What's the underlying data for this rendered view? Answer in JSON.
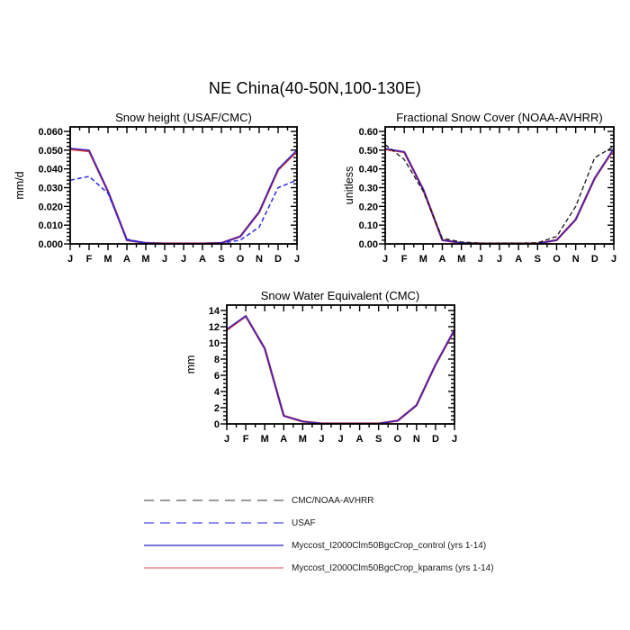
{
  "figure": {
    "title": "NE China(40-50N,100-130E)"
  },
  "chart_data": [
    {
      "type": "line",
      "title": "Snow height (USAF/CMC)",
      "xlabel": "",
      "ylabel": "mm/d",
      "categories": [
        "J",
        "F",
        "M",
        "A",
        "M",
        "J",
        "J",
        "A",
        "S",
        "O",
        "N",
        "D",
        "J"
      ],
      "ylim": [
        0,
        0.06
      ],
      "ytick_labels": [
        "0.000",
        "0.010",
        "0.020",
        "0.030",
        "0.040",
        "0.050",
        "0.060"
      ],
      "ytick_values": [
        0,
        0.01,
        0.02,
        0.03,
        0.04,
        0.05,
        0.06
      ],
      "minor_per_gap_y": 4,
      "grid": false,
      "zero_line": true,
      "series": [
        {
          "name": "Myccost_I2000Clm50BgcCrop_kparams (yrs 1-14)",
          "color": "#d23434",
          "width": 2.4,
          "dash": null,
          "values": [
            0.0505,
            0.0495,
            0.028,
            0.002,
            0.0005,
            0.0002,
            0.0002,
            0.0002,
            0.0005,
            0.004,
            0.017,
            0.0395,
            0.0495
          ]
        },
        {
          "name": "Myccost_I2000Clm50BgcCrop_control (yrs 1-14)",
          "color": "#3222cc",
          "width": 1.4,
          "dash": null,
          "values": [
            0.051,
            0.05,
            0.028,
            0.002,
            0.0005,
            0.0002,
            0.0002,
            0.0002,
            0.0005,
            0.004,
            0.017,
            0.04,
            0.05
          ]
        },
        {
          "name": "USAF",
          "color": "#2a2aee",
          "width": 1.5,
          "dash": "5 3",
          "values": [
            0.034,
            0.036,
            0.027,
            0.0025,
            0.0005,
            0.0002,
            0.0002,
            0.0002,
            0.0003,
            0.002,
            0.009,
            0.03,
            0.034
          ]
        }
      ]
    },
    {
      "type": "line",
      "title": "Fractional Snow Cover (NOAA-AVHRR)",
      "xlabel": "",
      "ylabel": "unitless",
      "categories": [
        "J",
        "F",
        "M",
        "A",
        "M",
        "J",
        "J",
        "A",
        "S",
        "O",
        "N",
        "D",
        "J"
      ],
      "ylim": [
        0,
        0.6
      ],
      "ytick_labels": [
        "0.00",
        "0.10",
        "0.20",
        "0.30",
        "0.40",
        "0.50",
        "0.60"
      ],
      "ytick_values": [
        0,
        0.1,
        0.2,
        0.3,
        0.4,
        0.5,
        0.6
      ],
      "minor_per_gap_y": 4,
      "grid": false,
      "zero_line": true,
      "series": [
        {
          "name": "Myccost_I2000Clm50BgcCrop_kparams (yrs 1-14)",
          "color": "#d23434",
          "width": 2.4,
          "dash": null,
          "values": [
            0.505,
            0.49,
            0.29,
            0.02,
            0.005,
            0.002,
            0.002,
            0.002,
            0.002,
            0.02,
            0.13,
            0.35,
            0.505
          ]
        },
        {
          "name": "Myccost_I2000Clm50BgcCrop_control (yrs 1-14)",
          "color": "#3222cc",
          "width": 1.4,
          "dash": null,
          "values": [
            0.51,
            0.49,
            0.29,
            0.02,
            0.005,
            0.002,
            0.002,
            0.002,
            0.002,
            0.02,
            0.13,
            0.35,
            0.51
          ]
        },
        {
          "name": "CMC/NOAA-AVHRR",
          "color": "#141414",
          "width": 1.3,
          "dash": "5 3",
          "values": [
            0.53,
            0.45,
            0.28,
            0.03,
            0.01,
            0.004,
            0.004,
            0.004,
            0.006,
            0.04,
            0.2,
            0.46,
            0.52
          ]
        }
      ]
    },
    {
      "type": "line",
      "title": "Snow Water Equivalent (CMC)",
      "xlabel": "",
      "ylabel": "mm",
      "categories": [
        "J",
        "F",
        "M",
        "A",
        "M",
        "J",
        "J",
        "A",
        "S",
        "O",
        "N",
        "D",
        "J"
      ],
      "ylim": [
        0,
        14
      ],
      "ytick_labels": [
        "0",
        "2",
        "4",
        "6",
        "8",
        "10",
        "12",
        "14"
      ],
      "ytick_values": [
        0,
        2,
        4,
        6,
        8,
        10,
        12,
        14
      ],
      "minor_per_gap_y": 3,
      "grid": false,
      "zero_line": true,
      "series": [
        {
          "name": "Myccost_I2000Clm50BgcCrop_kparams (yrs 1-14)",
          "color": "#d23434",
          "width": 2.4,
          "dash": null,
          "values": [
            11.6,
            13.3,
            9.3,
            1.0,
            0.3,
            0.05,
            0.05,
            0.05,
            0.05,
            0.4,
            2.3,
            7.3,
            11.6
          ]
        },
        {
          "name": "Myccost_I2000Clm50BgcCrop_control (yrs 1-14)",
          "color": "#3222cc",
          "width": 1.4,
          "dash": null,
          "values": [
            11.7,
            13.35,
            9.3,
            1.0,
            0.3,
            0.05,
            0.05,
            0.05,
            0.05,
            0.4,
            2.3,
            7.3,
            11.65
          ]
        }
      ]
    }
  ],
  "legend": {
    "items": [
      {
        "label": "CMC/NOAA-AVHRR",
        "color": "#9a9a9a",
        "dash": "11 7"
      },
      {
        "label": "USAF",
        "color": "#8d8df0",
        "dash": "11 7"
      },
      {
        "label": "Myccost_I2000Clm50BgcCrop_control (yrs 1-14)",
        "color": "#7474da",
        "dash": null
      },
      {
        "label": "Myccost_I2000Clm50BgcCrop_kparams (yrs 1-14)",
        "color": "#f2a3a3",
        "dash": null
      }
    ]
  },
  "style": {
    "frame_color": "#000000",
    "zero_line_color": "#9c9c9c"
  }
}
